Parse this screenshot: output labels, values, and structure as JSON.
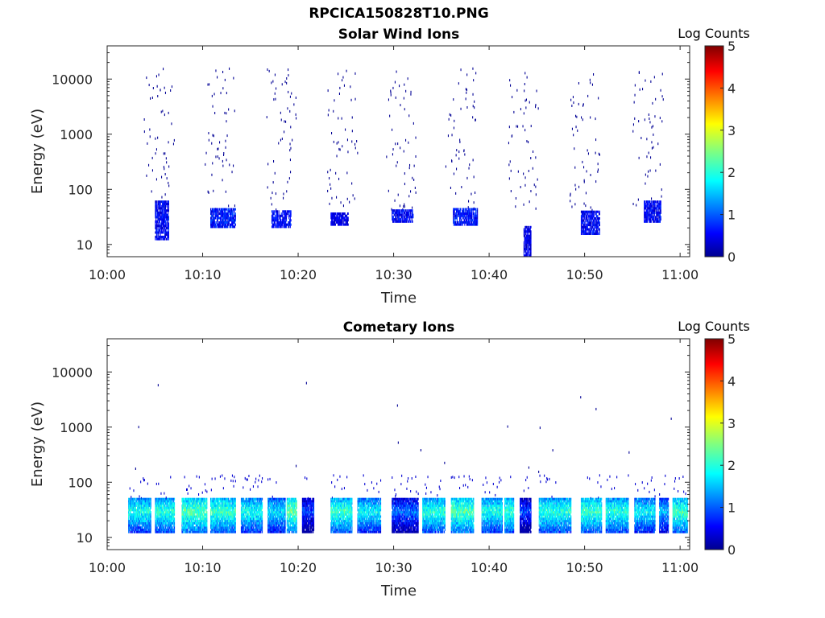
{
  "figure": {
    "filename": "RPCICA150828T10.PNG"
  },
  "colorbar": {
    "label": "Log Counts",
    "ticks": [
      "0",
      "1",
      "2",
      "3",
      "4",
      "5"
    ],
    "colormap": "jet"
  },
  "chart_data": [
    {
      "type": "heatmap",
      "title": "Solar Wind Ions",
      "xlabel": "Time",
      "ylabel": "Energy (eV)",
      "x_ticks": [
        "10:00",
        "10:10",
        "10:20",
        "10:30",
        "10:40",
        "10:50",
        "11:00"
      ],
      "y_ticks": [
        "10",
        "100",
        "1000",
        "10000"
      ],
      "y_scale": "log",
      "x_range_min": [
        0,
        61
      ],
      "y_range_ev": [
        6,
        40000
      ],
      "clim": [
        0,
        5
      ],
      "burst_centers_min": [
        5.4,
        11.8,
        18.2,
        24.6,
        30.8,
        37.0,
        43.6,
        50.0,
        56.6
      ],
      "blobs": [
        {
          "t": [
            5.0,
            6.4
          ],
          "e": [
            12,
            60
          ],
          "v": 0.6
        },
        {
          "t": [
            10.8,
            13.4
          ],
          "e": [
            20,
            45
          ],
          "v": 0.7
        },
        {
          "t": [
            17.2,
            19.2
          ],
          "e": [
            20,
            40
          ],
          "v": 0.6
        },
        {
          "t": [
            23.4,
            25.2
          ],
          "e": [
            22,
            35
          ],
          "v": 0.5
        },
        {
          "t": [
            29.8,
            32.0
          ],
          "e": [
            25,
            40
          ],
          "v": 0.6
        },
        {
          "t": [
            36.2,
            38.8
          ],
          "e": [
            22,
            45
          ],
          "v": 0.7
        },
        {
          "t": [
            43.6,
            44.4
          ],
          "e": [
            6,
            20
          ],
          "v": 0.5
        },
        {
          "t": [
            49.6,
            51.6
          ],
          "e": [
            15,
            40
          ],
          "v": 0.6
        },
        {
          "t": [
            56.2,
            58.0
          ],
          "e": [
            25,
            60
          ],
          "v": 0.6
        }
      ]
    },
    {
      "type": "heatmap",
      "title": "Cometary Ions",
      "xlabel": "Time",
      "ylabel": "Energy (eV)",
      "x_ticks": [
        "10:00",
        "10:10",
        "10:20",
        "10:30",
        "10:40",
        "10:50",
        "11:00"
      ],
      "y_ticks": [
        "10",
        "100",
        "1000",
        "10000"
      ],
      "y_scale": "log",
      "x_range_min": [
        0,
        61
      ],
      "y_range_ev": [
        6,
        40000
      ],
      "clim": [
        0,
        5
      ],
      "bands": [
        {
          "t": [
            2.2,
            4.6
          ],
          "v": 2.0
        },
        {
          "t": [
            5.0,
            7.0
          ],
          "v": 2.1
        },
        {
          "t": [
            7.8,
            10.4
          ],
          "v": 2.3
        },
        {
          "t": [
            10.8,
            13.4
          ],
          "v": 2.2
        },
        {
          "t": [
            14.0,
            16.2
          ],
          "v": 2.0
        },
        {
          "t": [
            16.8,
            18.6
          ],
          "v": 1.8
        },
        {
          "t": [
            18.8,
            19.8
          ],
          "v": 2.4
        },
        {
          "t": [
            20.4,
            21.6
          ],
          "v": 1.0
        },
        {
          "t": [
            23.4,
            25.6
          ],
          "v": 2.2
        },
        {
          "t": [
            26.2,
            28.6
          ],
          "v": 1.9
        },
        {
          "t": [
            29.8,
            32.6
          ],
          "v": 1.2
        },
        {
          "t": [
            33.0,
            35.4
          ],
          "v": 2.1
        },
        {
          "t": [
            36.0,
            38.4
          ],
          "v": 2.3
        },
        {
          "t": [
            39.2,
            41.4
          ],
          "v": 2.0
        },
        {
          "t": [
            41.6,
            42.6
          ],
          "v": 2.2
        },
        {
          "t": [
            43.2,
            44.4
          ],
          "v": 1.0
        },
        {
          "t": [
            45.2,
            48.6
          ],
          "v": 2.1
        },
        {
          "t": [
            49.6,
            51.8
          ],
          "v": 2.2
        },
        {
          "t": [
            52.2,
            54.6
          ],
          "v": 2.1
        },
        {
          "t": [
            55.2,
            57.4
          ],
          "v": 1.9
        },
        {
          "t": [
            57.8,
            58.8
          ],
          "v": 1.6
        },
        {
          "t": [
            59.2,
            60.8
          ],
          "v": 2.2
        }
      ]
    }
  ]
}
